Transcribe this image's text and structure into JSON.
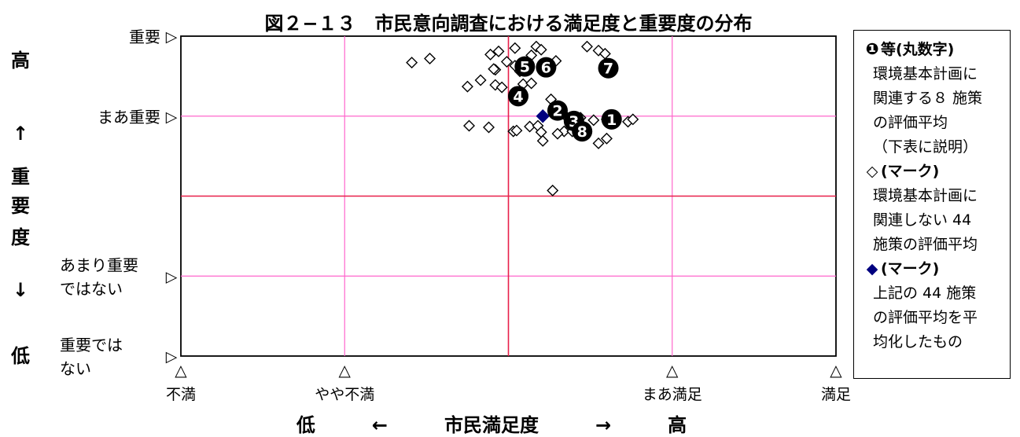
{
  "chart_data": {
    "type": "scatter",
    "title": "図２−１３　市民意向調査における満足度と重要度の分布",
    "xlabel": "低　　　←　　　市民満足度　　　→　　　高",
    "ylabel_chars": [
      "高",
      "↑",
      "重",
      "要",
      "度",
      "↓",
      "低"
    ],
    "xlim": [
      1,
      5
    ],
    "ylim": [
      1,
      5
    ],
    "x_ticks": [
      {
        "value": 1,
        "label": "不満",
        "marker": "△"
      },
      {
        "value": 2,
        "label": "やや不満",
        "marker": "△"
      },
      {
        "value": 4,
        "label": "まあ満足",
        "marker": "△"
      },
      {
        "value": 5,
        "label": "満足",
        "marker": "△"
      }
    ],
    "y_ticks": [
      {
        "value": 5,
        "label": "重要",
        "marker": "▷"
      },
      {
        "value": 4,
        "label": "まあ重要",
        "marker": "▷"
      },
      {
        "value": 2,
        "label": "あまり重要\nではない",
        "marker": "▷"
      },
      {
        "value": 1,
        "label": "重要では\nない",
        "marker": "▷"
      }
    ],
    "grid": {
      "x": [
        2,
        4
      ],
      "y": [
        2,
        4
      ],
      "color": "#ff66cc"
    },
    "center_lines": {
      "x": 3,
      "y": 3,
      "color": "#e8204a"
    },
    "series": [
      {
        "marker": "hollow-diamond",
        "points": [
          [
            2.41,
            4.67
          ],
          [
            2.52,
            4.72
          ],
          [
            2.89,
            4.77
          ],
          [
            2.99,
            4.68
          ],
          [
            2.92,
            4.58
          ],
          [
            3.04,
            4.63
          ],
          [
            2.94,
            4.81
          ],
          [
            3.04,
            4.85
          ],
          [
            3.14,
            4.76
          ],
          [
            3.17,
            4.87
          ],
          [
            3.2,
            4.83
          ],
          [
            3.29,
            4.69
          ],
          [
            3.48,
            4.87
          ],
          [
            3.55,
            4.82
          ],
          [
            3.59,
            4.78
          ],
          [
            3.07,
            4.56
          ],
          [
            2.91,
            4.59
          ],
          [
            2.83,
            4.45
          ],
          [
            2.75,
            4.37
          ],
          [
            2.92,
            4.39
          ],
          [
            2.96,
            4.36
          ],
          [
            3.09,
            4.4
          ],
          [
            3.14,
            4.41
          ],
          [
            3.26,
            4.21
          ],
          [
            3.35,
            4.0
          ],
          [
            3.44,
            3.98
          ],
          [
            3.52,
            3.95
          ],
          [
            3.6,
            3.96
          ],
          [
            3.73,
            3.93
          ],
          [
            3.76,
            3.96
          ],
          [
            2.76,
            3.88
          ],
          [
            2.88,
            3.86
          ],
          [
            3.03,
            3.81
          ],
          [
            3.05,
            3.82
          ],
          [
            3.13,
            3.87
          ],
          [
            3.18,
            3.88
          ],
          [
            3.34,
            3.81
          ],
          [
            3.3,
            3.78
          ],
          [
            3.2,
            3.8
          ],
          [
            3.21,
            3.69
          ],
          [
            3.39,
            3.81
          ],
          [
            3.6,
            3.72
          ],
          [
            3.55,
            3.66
          ],
          [
            3.27,
            3.07
          ]
        ]
      },
      {
        "marker": "filled-diamond",
        "color": "#00007f",
        "points": [
          [
            3.21,
            4.0
          ]
        ]
      },
      {
        "marker": "numbered-circle",
        "points": [
          {
            "label": "1",
            "x": 3.63,
            "y": 3.96
          },
          {
            "label": "2",
            "x": 3.3,
            "y": 4.07
          },
          {
            "label": "3",
            "x": 3.4,
            "y": 3.94
          },
          {
            "label": "4",
            "x": 3.06,
            "y": 4.25
          },
          {
            "label": "5",
            "x": 3.1,
            "y": 4.62
          },
          {
            "label": "6",
            "x": 3.23,
            "y": 4.61
          },
          {
            "label": "7",
            "x": 3.61,
            "y": 4.6
          },
          {
            "label": "8",
            "x": 3.45,
            "y": 3.81
          }
        ]
      }
    ]
  },
  "legend": {
    "items": [
      {
        "symbol": "❶",
        "head": "等(丸数字)",
        "lines": [
          "環境基本計画に",
          "関連する８ 施策",
          "の評価平均",
          "（下表に説明）"
        ]
      },
      {
        "symbol": "◇",
        "head": "(マーク)",
        "lines": [
          "環境基本計画に",
          "関連しない 44",
          "施策の評価平均"
        ]
      },
      {
        "symbol": "◆",
        "head": "(マーク)",
        "lines": [
          "上記の 44 施策",
          "の評価平均を平",
          "均化したもの"
        ]
      }
    ]
  }
}
